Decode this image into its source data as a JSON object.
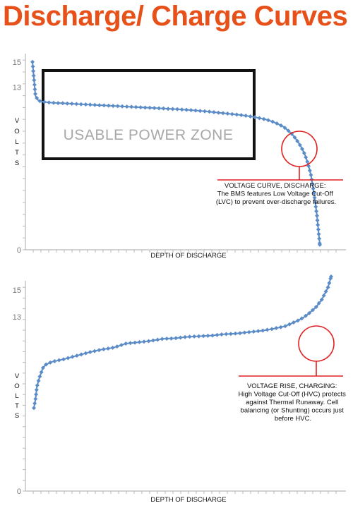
{
  "title": "Discharge/ Charge Curves",
  "colors": {
    "title": "#e8501a",
    "series": "#5b8cc8",
    "annotation": "#e02020",
    "zone_box": "#111111"
  },
  "chart_data": [
    {
      "type": "line",
      "title": "",
      "xlabel": "DEPTH OF DISCHARGE",
      "ylabel": "VOLTS",
      "ylim": [
        0,
        16
      ],
      "xlim": [
        0,
        100
      ],
      "yticks": [
        0,
        13,
        15
      ],
      "grid": false,
      "series": [
        {
          "name": "",
          "x": [
            0,
            1,
            2,
            3,
            4,
            6,
            8,
            10,
            14,
            18,
            22,
            26,
            30,
            34,
            38,
            42,
            46,
            50,
            54,
            58,
            62,
            66,
            70,
            74,
            78,
            80,
            82,
            84,
            86,
            87,
            88,
            89,
            90,
            91,
            92,
            93,
            94,
            95,
            96
          ],
          "y": [
            15,
            12.3,
            11.9,
            11.85,
            11.8,
            11.75,
            11.72,
            11.7,
            11.65,
            11.6,
            11.55,
            11.5,
            11.45,
            11.4,
            11.35,
            11.3,
            11.25,
            11.2,
            11.13,
            11.05,
            10.95,
            10.85,
            10.75,
            10.6,
            10.4,
            10.25,
            10.05,
            9.8,
            9.4,
            9.15,
            8.85,
            8.5,
            8.1,
            7.6,
            6.9,
            6.0,
            4.6,
            2.8,
            0.4
          ]
        }
      ],
      "zone_label": "USABLE POWER ZONE",
      "annotation": {
        "lines": [
          "VOLTAGE CURVE, DISCHARGE:",
          "The BMS features Low Voltage Cut-Off",
          "(LVC) to prevent over-discharge failures."
        ]
      }
    },
    {
      "type": "line",
      "title": "",
      "xlabel": "DEPTH OF DISCHARGE",
      "ylabel": "VOLTS",
      "ylim": [
        0,
        16
      ],
      "xlim": [
        0,
        100
      ],
      "yticks": [
        0,
        13,
        15
      ],
      "grid": false,
      "series": [
        {
          "name": "",
          "x": [
            0,
            0.5,
            1,
            2,
            3,
            4,
            6,
            8,
            10,
            14,
            18,
            22,
            26,
            30,
            34,
            38,
            42,
            46,
            50,
            54,
            58,
            62,
            66,
            70,
            74,
            78,
            82,
            84,
            86,
            88,
            90,
            92,
            94,
            96,
            97
          ],
          "y": [
            6.2,
            6.8,
            7.8,
            8.6,
            9.2,
            9.45,
            9.65,
            9.75,
            9.85,
            10.1,
            10.35,
            10.55,
            10.7,
            11.0,
            11.1,
            11.2,
            11.35,
            11.4,
            11.5,
            11.55,
            11.6,
            11.7,
            11.75,
            11.85,
            11.95,
            12.1,
            12.3,
            12.5,
            12.7,
            12.95,
            13.3,
            13.7,
            14.3,
            15.2,
            16.0
          ]
        }
      ],
      "annotation": {
        "lines": [
          "VOLTAGE RISE, CHARGING:",
          "High Voltage Cut-Off (HVC) protects",
          "against Thermal Runaway. Cell",
          "balancing (or Shunting) occurs just",
          "before HVC."
        ]
      }
    }
  ]
}
